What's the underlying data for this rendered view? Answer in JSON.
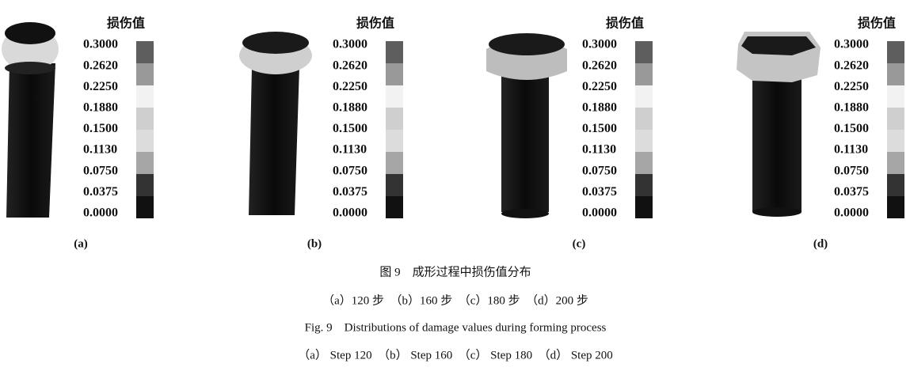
{
  "panels": [
    {
      "legend_title": "损伤值",
      "legend_values": [
        "0.3000",
        "0.2620",
        "0.2250",
        "0.1880",
        "0.1500",
        "0.1130",
        "0.0750",
        "0.0375",
        "0.0000"
      ],
      "label": "(a)"
    },
    {
      "legend_title": "损伤值",
      "legend_values": [
        "0.3000",
        "0.2620",
        "0.2250",
        "0.1880",
        "0.1500",
        "0.1130",
        "0.0750",
        "0.0375",
        "0.0000"
      ],
      "label": "(b)"
    },
    {
      "legend_title": "损伤值",
      "legend_values": [
        "0.3000",
        "0.2620",
        "0.2250",
        "0.1880",
        "0.1500",
        "0.1130",
        "0.0750",
        "0.0375",
        "0.0000"
      ],
      "label": "(c)"
    },
    {
      "legend_title": "损伤值",
      "legend_values": [
        "0.3000",
        "0.2620",
        "0.2250",
        "0.1880",
        "0.1500",
        "0.1130",
        "0.0750",
        "0.0375",
        "0.0000"
      ],
      "label": "(d)"
    }
  ],
  "caption": {
    "cn_title": "图 9　成形过程中损伤值分布",
    "cn_steps": "（a）120 步　（b）160 步　（c）180 步　（d）200 步",
    "en_title": "Fig. 9　Distributions of damage values during forming process",
    "en_steps": "（a） Step 120　（b） Step 160　（c） Step 180　（d） Step 200"
  }
}
